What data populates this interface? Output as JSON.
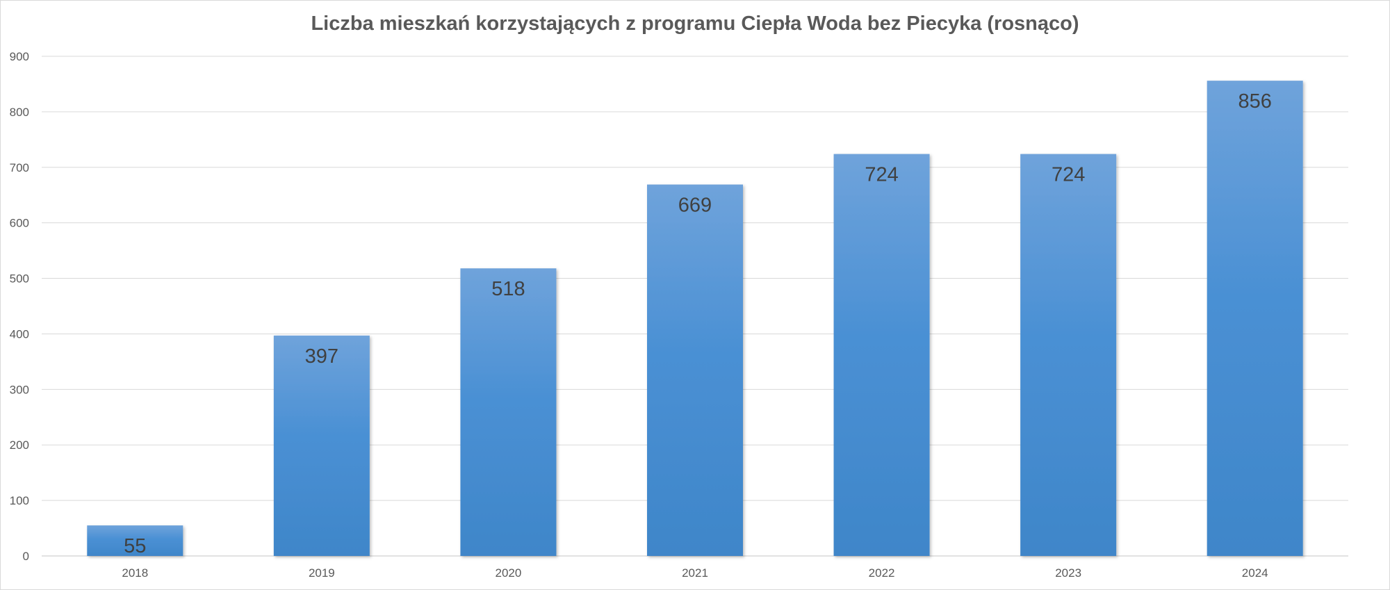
{
  "chart_data": {
    "type": "bar",
    "title": "Liczba mieszkań korzystających z programu Ciepła Woda bez Piecyka (rosnąco)",
    "categories": [
      "2018",
      "2019",
      "2020",
      "2021",
      "2022",
      "2023",
      "2024"
    ],
    "values": [
      55,
      397,
      518,
      669,
      724,
      724,
      856
    ],
    "data_labels": [
      "55",
      "397",
      "518",
      "669",
      "724",
      "724",
      "856"
    ],
    "yticks": [
      "0",
      "100",
      "200",
      "300",
      "400",
      "500",
      "600",
      "700",
      "800",
      "900"
    ],
    "ylim": [
      0,
      900
    ],
    "grid": true,
    "legend": "none",
    "bar_color": "#4a90d4",
    "bar_color_top": "#6fa3db",
    "bar_color_bottom": "#3f86c9",
    "grid_color": "#d9d9d9",
    "text_color": "#595959"
  }
}
